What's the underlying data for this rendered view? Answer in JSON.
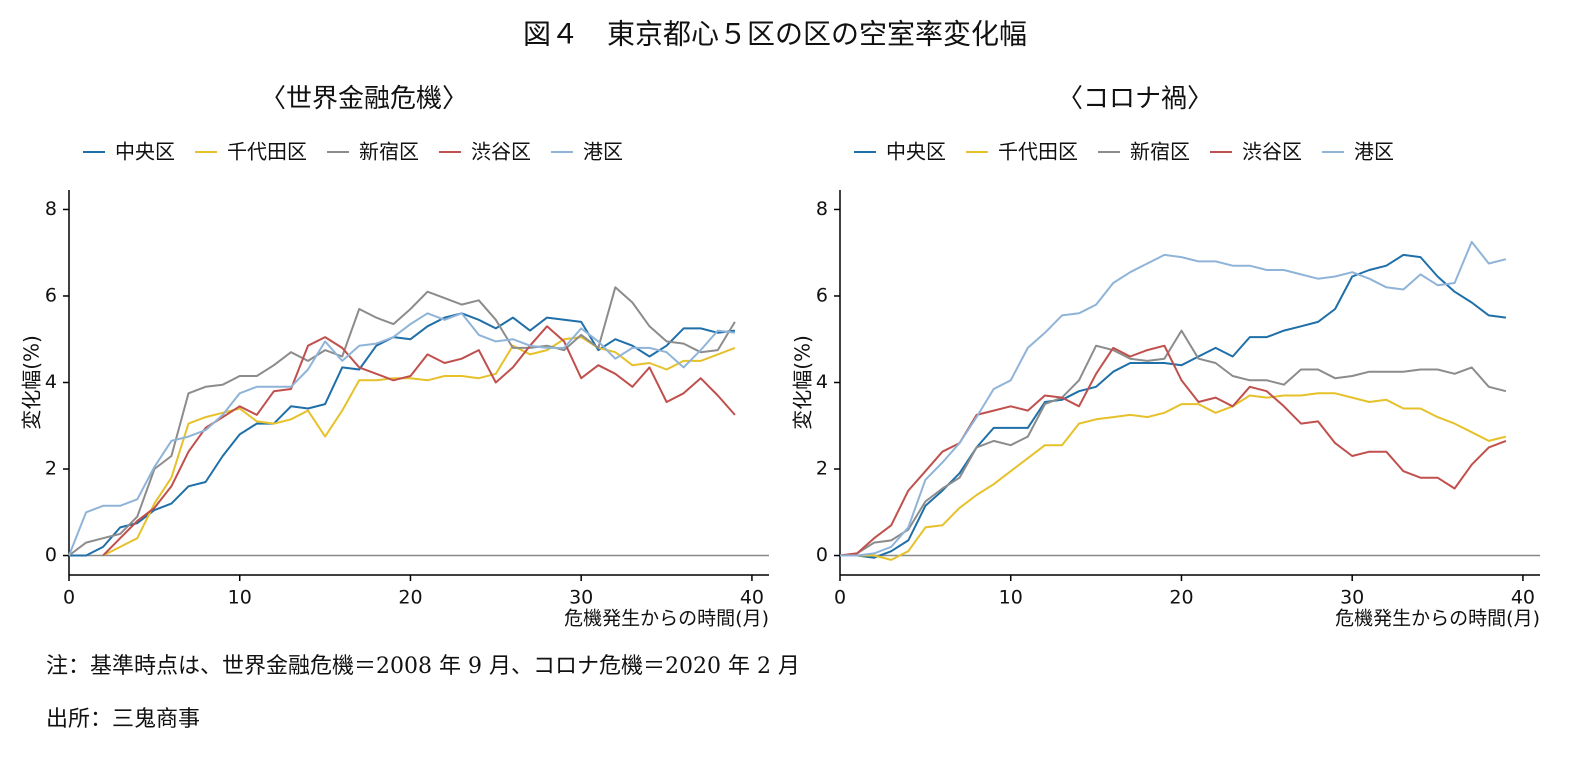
{
  "title": "図４　東京都心５区の区の空室率変化幅",
  "note": "注：基準時点は、世界金融危機＝2008 年 9 月、コロナ危機＝2020 年 2 月",
  "source": "出所：三鬼商事",
  "chart_data": [
    {
      "type": "line",
      "title": "〈世界金融危機〉",
      "xlabel": "危機発生からの時間(月)",
      "ylabel": "変化幅(%)",
      "x": [
        0,
        1,
        2,
        3,
        4,
        5,
        6,
        7,
        8,
        9,
        10,
        11,
        12,
        13,
        14,
        15,
        16,
        17,
        18,
        19,
        20,
        21,
        22,
        23,
        24,
        25,
        26,
        27,
        28,
        29,
        30,
        31,
        32,
        33,
        34,
        35,
        36,
        37,
        38,
        39
      ],
      "xlim": [
        0,
        41
      ],
      "xticks": [
        0,
        10,
        20,
        30,
        40
      ],
      "ylim": [
        -0.45,
        8.45
      ],
      "yticks": [
        0,
        2,
        4,
        6,
        8
      ],
      "legend": "top",
      "series": [
        {
          "name": "中央区",
          "color": "#1f6fa8",
          "values": [
            0,
            0,
            0.2,
            0.65,
            0.75,
            1.05,
            1.2,
            1.6,
            1.7,
            2.3,
            2.8,
            3.05,
            3.05,
            3.45,
            3.4,
            3.5,
            4.35,
            4.3,
            4.85,
            5.05,
            5.0,
            5.3,
            5.5,
            5.6,
            5.45,
            5.25,
            5.5,
            5.2,
            5.5,
            5.45,
            5.4,
            4.75,
            5.0,
            4.85,
            4.6,
            4.85,
            5.25,
            5.25,
            5.15,
            5.2
          ]
        },
        {
          "name": "千代田区",
          "color": "#e6c12a",
          "values": [
            null,
            null,
            0,
            0.2,
            0.4,
            1.2,
            1.8,
            3.05,
            3.2,
            3.3,
            3.4,
            3.1,
            3.05,
            3.15,
            3.35,
            2.75,
            3.35,
            4.05,
            4.05,
            4.1,
            4.1,
            4.05,
            4.15,
            4.15,
            4.1,
            4.2,
            4.85,
            4.65,
            4.75,
            5.0,
            5.05,
            4.8,
            4.7,
            4.4,
            4.45,
            4.3,
            4.5,
            4.5,
            4.65,
            4.8
          ]
        },
        {
          "name": "新宿区",
          "color": "#8c8c8c",
          "values": [
            0,
            0.3,
            0.4,
            0.5,
            0.9,
            2.0,
            2.3,
            3.75,
            3.9,
            3.95,
            4.15,
            4.15,
            4.4,
            4.7,
            4.5,
            4.75,
            4.6,
            5.7,
            5.5,
            5.35,
            5.7,
            6.1,
            5.95,
            5.8,
            5.9,
            5.45,
            4.8,
            4.8,
            4.85,
            4.75,
            5.1,
            4.8,
            6.2,
            5.85,
            5.3,
            4.95,
            4.9,
            4.7,
            4.75,
            5.4
          ]
        },
        {
          "name": "渋谷区",
          "color": "#c0504d",
          "values": [
            null,
            null,
            0,
            0.4,
            0.8,
            1.1,
            1.6,
            2.4,
            2.95,
            3.2,
            3.45,
            3.25,
            3.8,
            3.85,
            4.85,
            5.05,
            4.8,
            4.35,
            4.2,
            4.05,
            4.15,
            4.65,
            4.45,
            4.55,
            4.75,
            4.0,
            4.35,
            4.85,
            5.3,
            4.95,
            4.1,
            4.4,
            4.2,
            3.9,
            4.35,
            3.55,
            3.75,
            4.1,
            3.7,
            3.25
          ]
        },
        {
          "name": "港区",
          "color": "#8fb4d8",
          "values": [
            0,
            1.0,
            1.15,
            1.15,
            1.3,
            2.05,
            2.65,
            2.75,
            2.9,
            3.25,
            3.75,
            3.9,
            3.9,
            3.9,
            4.3,
            4.95,
            4.5,
            4.85,
            4.9,
            5.05,
            5.35,
            5.6,
            5.45,
            5.6,
            5.1,
            4.95,
            5.0,
            4.85,
            4.8,
            4.8,
            5.25,
            4.95,
            4.55,
            4.8,
            4.8,
            4.7,
            4.35,
            4.75,
            5.2,
            5.15
          ]
        }
      ]
    },
    {
      "type": "line",
      "title": "〈コロナ禍〉",
      "xlabel": "危機発生からの時間(月)",
      "ylabel": "変化幅(%)",
      "x": [
        0,
        1,
        2,
        3,
        4,
        5,
        6,
        7,
        8,
        9,
        10,
        11,
        12,
        13,
        14,
        15,
        16,
        17,
        18,
        19,
        20,
        21,
        22,
        23,
        24,
        25,
        26,
        27,
        28,
        29,
        30,
        31,
        32,
        33,
        34,
        35,
        36,
        37,
        38,
        39
      ],
      "xlim": [
        0,
        41
      ],
      "xticks": [
        0,
        10,
        20,
        30,
        40
      ],
      "ylim": [
        -0.45,
        8.45
      ],
      "yticks": [
        0,
        2,
        4,
        6,
        8
      ],
      "legend": "top",
      "series": [
        {
          "name": "中央区",
          "color": "#1f6fa8",
          "values": [
            0,
            0,
            -0.05,
            0.1,
            0.35,
            1.15,
            1.5,
            1.9,
            2.5,
            2.95,
            2.95,
            2.95,
            3.55,
            3.6,
            3.8,
            3.9,
            4.25,
            4.45,
            4.45,
            4.45,
            4.4,
            4.6,
            4.8,
            4.6,
            5.05,
            5.05,
            5.2,
            5.3,
            5.4,
            5.7,
            6.45,
            6.6,
            6.7,
            6.95,
            6.9,
            6.45,
            6.1,
            5.85,
            5.55,
            5.5
          ]
        },
        {
          "name": "千代田区",
          "color": "#e6c12a",
          "values": [
            0,
            0,
            0,
            -0.1,
            0.1,
            0.65,
            0.7,
            1.1,
            1.4,
            1.65,
            1.95,
            2.25,
            2.55,
            2.55,
            3.05,
            3.15,
            3.2,
            3.25,
            3.2,
            3.3,
            3.5,
            3.5,
            3.3,
            3.45,
            3.7,
            3.65,
            3.7,
            3.7,
            3.75,
            3.75,
            3.65,
            3.55,
            3.6,
            3.4,
            3.4,
            3.2,
            3.05,
            2.85,
            2.65,
            2.75
          ]
        },
        {
          "name": "新宿区",
          "color": "#8c8c8c",
          "values": [
            0,
            0.05,
            0.3,
            0.35,
            0.6,
            1.25,
            1.55,
            1.8,
            2.5,
            2.65,
            2.55,
            2.75,
            3.5,
            3.65,
            4.05,
            4.85,
            4.75,
            4.55,
            4.5,
            4.55,
            5.2,
            4.55,
            4.45,
            4.15,
            4.05,
            4.05,
            3.95,
            4.3,
            4.3,
            4.1,
            4.15,
            4.25,
            4.25,
            4.25,
            4.3,
            4.3,
            4.2,
            4.35,
            3.9,
            3.8
          ]
        },
        {
          "name": "渋谷区",
          "color": "#c0504d",
          "values": [
            0,
            0.05,
            0.4,
            0.7,
            1.5,
            1.95,
            2.4,
            2.6,
            3.25,
            3.35,
            3.45,
            3.35,
            3.7,
            3.65,
            3.45,
            4.2,
            4.8,
            4.6,
            4.75,
            4.85,
            4.05,
            3.55,
            3.65,
            3.45,
            3.9,
            3.8,
            3.45,
            3.05,
            3.1,
            2.6,
            2.3,
            2.4,
            2.4,
            1.95,
            1.8,
            1.8,
            1.55,
            2.1,
            2.5,
            2.65
          ]
        },
        {
          "name": "港区",
          "color": "#8fb4d8",
          "values": [
            0,
            0,
            0.05,
            0.2,
            0.65,
            1.75,
            2.15,
            2.6,
            3.2,
            3.85,
            4.05,
            4.8,
            5.15,
            5.55,
            5.6,
            5.8,
            6.3,
            6.55,
            6.75,
            6.95,
            6.9,
            6.8,
            6.8,
            6.7,
            6.7,
            6.6,
            6.6,
            6.5,
            6.4,
            6.45,
            6.55,
            6.4,
            6.2,
            6.15,
            6.5,
            6.25,
            6.3,
            7.25,
            6.75,
            6.85
          ]
        }
      ]
    }
  ]
}
